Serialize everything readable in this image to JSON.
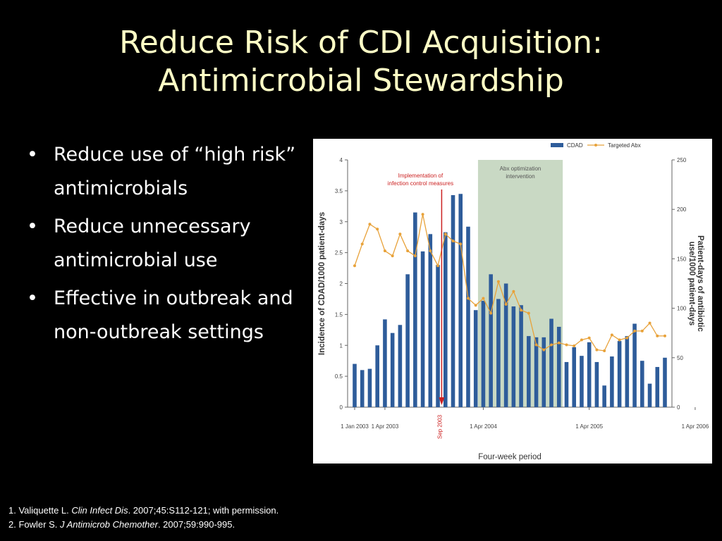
{
  "slide": {
    "title_line1": "Reduce Risk of CDI Acquisition:",
    "title_line2": "Antimicrobial Stewardship",
    "bullets": [
      "Reduce use of “high risk” antimicrobials",
      "Reduce unnecessary antimicrobial use",
      "Effective in outbreak and non-outbreak settings"
    ]
  },
  "footnotes": [
    {
      "prefix": "1. Valiquette L. ",
      "journal": "Clin Infect Dis",
      "suffix": ". 2007;45:S112-121; with permission."
    },
    {
      "prefix": "2. Fowler S. ",
      "journal": "J Antimicrob Chemother",
      "suffix": ". 2007;59:990-995."
    }
  ],
  "colors": {
    "bar": "#2e5c9a",
    "line": "#e8a23a",
    "shade": "#c9d9c4",
    "marker": "#cc2222",
    "title": "#ffffc6"
  },
  "chart_data": {
    "type": "bar",
    "xlabel": "Four-week period",
    "ylabel": "Incidence of CDAD/1000 patient-days",
    "y2label_line1": "Patient-days of antibiotic",
    "y2label_line2": "use/1000 patient-days",
    "ylim": [
      0,
      4
    ],
    "y2lim": [
      0,
      250
    ],
    "yticks": [
      "0",
      "0.5",
      "1",
      "1.5",
      "2",
      "2.5",
      "3",
      "3.5",
      "4"
    ],
    "y2ticks": [
      "0",
      "50",
      "100",
      "150",
      "200",
      "250"
    ],
    "xticks": [
      {
        "label": "1 Jan 2003",
        "index": 0
      },
      {
        "label": "1 Apr 2003",
        "index": 4
      },
      {
        "label": "1 Apr 2004",
        "index": 17
      },
      {
        "label": "1 Apr 2005",
        "index": 31
      },
      {
        "label": "1 Apr 2006",
        "index": 45
      }
    ],
    "legend": {
      "position": "top-right",
      "bar_label": "CDAD",
      "line_label": "Targeted Abx"
    },
    "shaded_region": {
      "start_index": 16.3,
      "end_index": 27.5,
      "label_line1": "Abx optimization",
      "label_line2": "intervention"
    },
    "vertical_marker": {
      "index": 11.5,
      "label": "Sep 2003",
      "annotation_line1": "Implementation of",
      "annotation_line2": "infection control measures"
    },
    "series": [
      {
        "name": "CDAD",
        "type": "bar",
        "axis": "left",
        "values": [
          0.7,
          0.6,
          0.62,
          1.0,
          1.42,
          1.2,
          1.33,
          2.15,
          3.15,
          2.52,
          2.8,
          2.3,
          2.83,
          3.43,
          3.45,
          2.92,
          1.57,
          1.72,
          2.15,
          1.75,
          2.0,
          1.63,
          1.65,
          1.15,
          1.13,
          1.13,
          1.43,
          1.3,
          0.73,
          0.97,
          0.83,
          1.05,
          0.73,
          0.35,
          0.82,
          1.07,
          1.15,
          1.35,
          0.75,
          0.38,
          0.65,
          0.8
        ]
      },
      {
        "name": "Targeted Abx",
        "type": "line",
        "axis": "right",
        "values": [
          143,
          165,
          185,
          180,
          158,
          153,
          175,
          158,
          153,
          195,
          158,
          143,
          175,
          168,
          165,
          110,
          103,
          110,
          95,
          127,
          104,
          117,
          98,
          95,
          63,
          58,
          63,
          65,
          63,
          62,
          68,
          70,
          58,
          57,
          73,
          68,
          70,
          77,
          77,
          85,
          72,
          72
        ]
      }
    ]
  }
}
